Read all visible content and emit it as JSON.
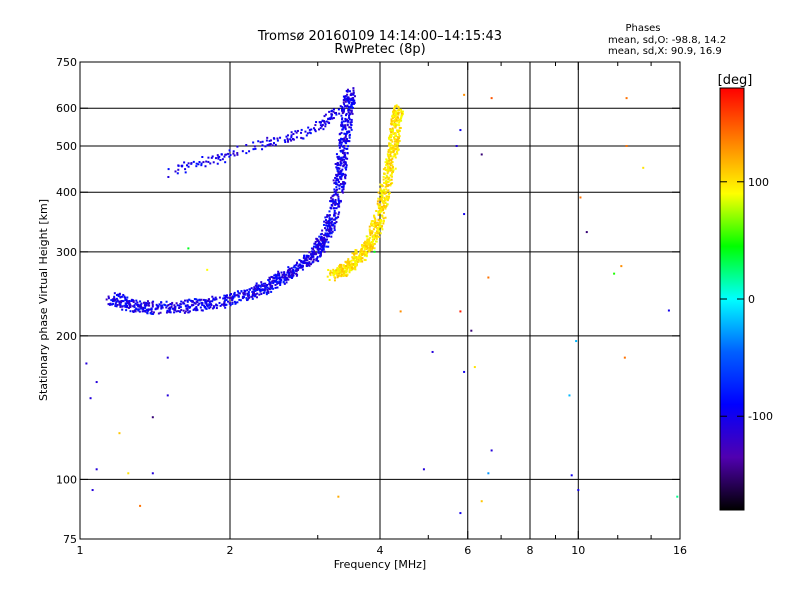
{
  "chart_data": {
    "type": "scatter",
    "title": "Tromsø 20160109 14:14:00–14:15:43",
    "subtitle": "RwPretec (8p)",
    "xlabel": "Frequency [MHz]",
    "ylabel": "Stationary phase Virtual Height [km]",
    "x_scale": "log",
    "y_scale": "log",
    "xlim": [
      1,
      16
    ],
    "ylim": [
      75,
      750
    ],
    "x_ticks": [
      1,
      2,
      4,
      6,
      8,
      10,
      16
    ],
    "x_tick_labels": [
      "1",
      "2",
      "4",
      "6",
      "8",
      "10",
      "16"
    ],
    "x_minor_ticks": [
      3,
      5,
      7,
      9,
      12,
      14
    ],
    "y_ticks": [
      75,
      100,
      200,
      300,
      400,
      500,
      600,
      750
    ],
    "y_tick_labels": [
      "75",
      "100",
      "200",
      "300",
      "400",
      "500",
      "600",
      "750"
    ],
    "grid": true,
    "legend": {
      "title": "Phases",
      "lines": [
        "mean, sd,O: -98.8, 14.2",
        "mean, sd,X:  90.9, 16.9"
      ],
      "placement": "top-right"
    },
    "colorbar": {
      "label": "[deg]",
      "range": [
        -180,
        180
      ],
      "ticks": [
        100,
        0,
        -100
      ],
      "tick_labels": [
        "100",
        "0",
        "-100"
      ],
      "colors": [
        "#ff0000",
        "#ff8000",
        "#ffff00",
        "#00ff00",
        "#00ffff",
        "#0060ff",
        "#0000ff",
        "#5000b0",
        "#000000"
      ]
    },
    "series": [
      {
        "mode": "O",
        "description_trace": "curved band from lower left rising steeply near 3.3–3.5 MHz",
        "trace": [
          [
            1.15,
            240
          ],
          [
            1.25,
            232
          ],
          [
            1.4,
            229
          ],
          [
            1.6,
            230
          ],
          [
            1.8,
            233
          ],
          [
            2.0,
            238
          ],
          [
            2.2,
            245
          ],
          [
            2.4,
            255
          ],
          [
            2.6,
            268
          ],
          [
            2.8,
            283
          ],
          [
            3.0,
            300
          ],
          [
            3.1,
            320
          ],
          [
            3.2,
            350
          ],
          [
            3.3,
            400
          ],
          [
            3.35,
            460
          ],
          [
            3.4,
            520
          ],
          [
            3.45,
            600
          ],
          [
            3.5,
            650
          ]
        ],
        "upper_trace": [
          [
            1.5,
            440
          ],
          [
            1.7,
            460
          ],
          [
            1.9,
            470
          ],
          [
            2.1,
            490
          ],
          [
            2.4,
            510
          ],
          [
            2.8,
            530
          ],
          [
            3.1,
            560
          ],
          [
            3.3,
            600
          ]
        ],
        "color_value": -100
      },
      {
        "mode": "X",
        "trace": [
          [
            3.2,
            268
          ],
          [
            3.4,
            275
          ],
          [
            3.6,
            290
          ],
          [
            3.8,
            310
          ],
          [
            3.95,
            340
          ],
          [
            4.05,
            380
          ],
          [
            4.15,
            430
          ],
          [
            4.25,
            490
          ],
          [
            4.3,
            550
          ],
          [
            4.35,
            600
          ]
        ],
        "color_value": 100
      },
      {
        "mode": "scattered",
        "points": [
          [
            1.03,
            175,
            -110
          ],
          [
            1.08,
            160,
            -110
          ],
          [
            1.05,
            148,
            -110
          ],
          [
            1.08,
            105,
            -110
          ],
          [
            1.06,
            95,
            -110
          ],
          [
            1.25,
            103,
            100
          ],
          [
            1.4,
            103,
            -110
          ],
          [
            1.32,
            88,
            140
          ],
          [
            1.5,
            180,
            -110
          ],
          [
            1.5,
            150,
            -110
          ],
          [
            1.4,
            135,
            -150
          ],
          [
            1.2,
            125,
            110
          ],
          [
            3.3,
            92,
            120
          ],
          [
            4.9,
            105,
            -110
          ],
          [
            5.1,
            185,
            -110
          ],
          [
            5.9,
            168,
            -100
          ],
          [
            6.2,
            172,
            100
          ],
          [
            5.8,
            85,
            -100
          ],
          [
            6.4,
            90,
            110
          ],
          [
            6.7,
            115,
            -110
          ],
          [
            6.6,
            103,
            -30
          ],
          [
            5.8,
            225,
            170
          ],
          [
            6.1,
            205,
            -150
          ],
          [
            5.9,
            360,
            -100
          ],
          [
            6.4,
            480,
            -150
          ],
          [
            6.6,
            265,
            140
          ],
          [
            6.7,
            630,
            150
          ],
          [
            5.7,
            500,
            -110
          ],
          [
            5.8,
            540,
            -100
          ],
          [
            5.9,
            640,
            130
          ],
          [
            9.6,
            150,
            -20
          ],
          [
            9.9,
            195,
            -20
          ],
          [
            10.0,
            95,
            -100
          ],
          [
            9.7,
            102,
            -100
          ],
          [
            10.1,
            390,
            140
          ],
          [
            10.4,
            330,
            -150
          ],
          [
            11.8,
            270,
            50
          ],
          [
            12.2,
            280,
            130
          ],
          [
            12.4,
            180,
            140
          ],
          [
            12.5,
            630,
            140
          ],
          [
            12.5,
            500,
            140
          ],
          [
            13.5,
            450,
            100
          ],
          [
            15.2,
            226,
            -100
          ],
          [
            15.8,
            92,
            20
          ],
          [
            4.4,
            225,
            130
          ],
          [
            3.9,
            300,
            40
          ],
          [
            1.8,
            275,
            90
          ],
          [
            1.65,
            305,
            40
          ]
        ]
      }
    ]
  }
}
